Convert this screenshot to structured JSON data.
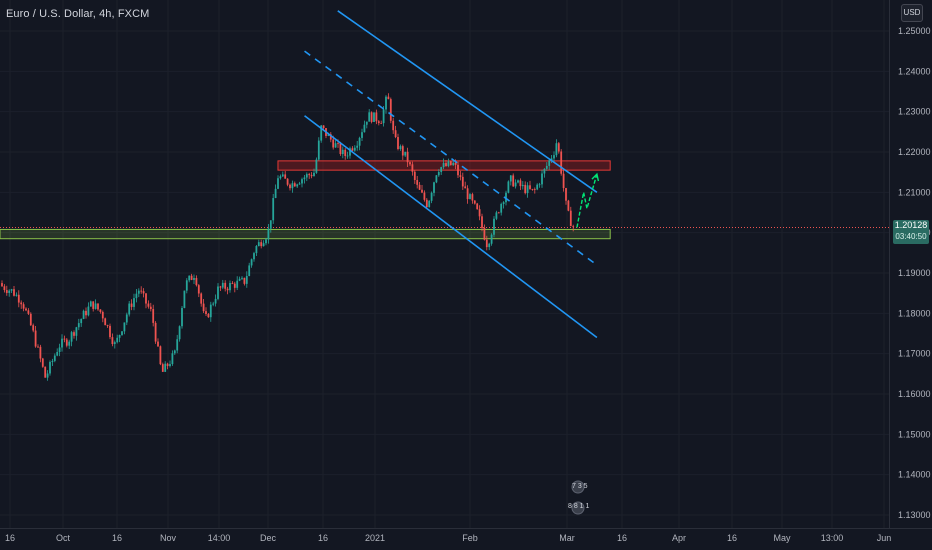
{
  "header": {
    "symbol_title": "Euro / U.S. Dollar, 4h, FXCM",
    "currency_label": "USD"
  },
  "price_tag": {
    "price": "1.20128",
    "countdown": "03:40:50"
  },
  "colors": {
    "background": "#131722",
    "up_candle": "#26a69a",
    "down_candle": "#ef5350",
    "channel_line": "#2196f3",
    "resistance_zone": "#b71c1c",
    "support_zone": "#8bc34a",
    "projection_arrow": "#00e676",
    "axis_text": "#b2b5be",
    "price_line": "#ef5350"
  },
  "badges": [
    "7 3 5",
    "8 8 1 1"
  ],
  "chart_data": {
    "type": "candlestick",
    "title": "Euro / U.S. Dollar, 4h, FXCM",
    "x_tick_labels": [
      "16",
      "Oct",
      "16",
      "Nov",
      "14:00",
      "Dec",
      "16",
      "2021",
      "Feb",
      "Mar",
      "16",
      "Apr",
      "16",
      "May",
      "13:00",
      "Jun"
    ],
    "y_tick_labels": [
      "1.25000",
      "1.24000",
      "1.23000",
      "1.22000",
      "1.21000",
      "1.20000",
      "1.19000",
      "1.18000",
      "1.17000",
      "1.16000",
      "1.15000",
      "1.14000",
      "1.13000"
    ],
    "ylim": [
      1.127,
      1.2555
    ],
    "last_price": 1.20128,
    "price_path": [
      [
        "2020-09-10",
        1.1875
      ],
      [
        "2020-09-15",
        1.1855
      ],
      [
        "2020-09-18",
        1.183
      ],
      [
        "2020-09-21",
        1.176
      ],
      [
        "2020-09-25",
        1.164
      ],
      [
        "2020-09-29",
        1.172
      ],
      [
        "2020-10-02",
        1.1735
      ],
      [
        "2020-10-06",
        1.179
      ],
      [
        "2020-10-09",
        1.1825
      ],
      [
        "2020-10-12",
        1.18
      ],
      [
        "2020-10-16",
        1.172
      ],
      [
        "2020-10-20",
        1.181
      ],
      [
        "2020-10-23",
        1.186
      ],
      [
        "2020-10-27",
        1.18
      ],
      [
        "2020-10-30",
        1.165
      ],
      [
        "2020-11-03",
        1.17
      ],
      [
        "2020-11-06",
        1.187
      ],
      [
        "2020-11-09",
        1.19
      ],
      [
        "2020-11-12",
        1.178
      ],
      [
        "2020-11-16",
        1.186
      ],
      [
        "2020-11-20",
        1.187
      ],
      [
        "2020-11-24",
        1.188
      ],
      [
        "2020-11-27",
        1.196
      ],
      [
        "2020-12-01",
        1.2
      ],
      [
        "2020-12-04",
        1.214
      ],
      [
        "2020-12-08",
        1.212
      ],
      [
        "2020-12-10",
        1.213
      ],
      [
        "2020-12-15",
        1.215
      ],
      [
        "2020-12-17",
        1.226
      ],
      [
        "2020-12-21",
        1.222
      ],
      [
        "2020-12-24",
        1.219
      ],
      [
        "2020-12-28",
        1.223
      ],
      [
        "2020-12-31",
        1.229
      ],
      [
        "2021-01-04",
        1.228
      ],
      [
        "2021-01-06",
        1.234
      ],
      [
        "2021-01-08",
        1.223
      ],
      [
        "2021-01-12",
        1.218
      ],
      [
        "2021-01-15",
        1.211
      ],
      [
        "2021-01-18",
        1.207
      ],
      [
        "2021-01-21",
        1.216
      ],
      [
        "2021-01-26",
        1.217
      ],
      [
        "2021-01-29",
        1.211
      ],
      [
        "2021-02-02",
        1.205
      ],
      [
        "2021-02-05",
        1.197
      ],
      [
        "2021-02-08",
        1.205
      ],
      [
        "2021-02-12",
        1.213
      ],
      [
        "2021-02-16",
        1.211
      ],
      [
        "2021-02-19",
        1.21
      ],
      [
        "2021-02-22",
        1.215
      ],
      [
        "2021-02-25",
        1.22
      ],
      [
        "2021-02-26",
        1.223
      ],
      [
        "2021-03-01",
        1.205
      ],
      [
        "2021-03-03",
        1.2013
      ]
    ],
    "annotations": {
      "resistance_zone": {
        "from": "2020-12-04",
        "to": "2021-03-14",
        "low": 1.2155,
        "high": 1.2178
      },
      "support_zone": {
        "from": "2020-09-09",
        "to": "2021-03-14",
        "low": 1.1985,
        "high": 1.2008
      },
      "channel_upper": [
        [
          "2020-12-22",
          1.255
        ],
        [
          "2021-03-10",
          1.21
        ]
      ],
      "channel_mid_dashed": [
        [
          "2020-12-12",
          1.245
        ],
        [
          "2021-03-10",
          1.192
        ]
      ],
      "channel_lower": [
        [
          "2020-12-12",
          1.229
        ],
        [
          "2021-03-10",
          1.174
        ]
      ],
      "projection_arrow": [
        [
          "2021-03-04",
          1.2013
        ],
        [
          "2021-03-06",
          1.21
        ],
        [
          "2021-03-07",
          1.206
        ],
        [
          "2021-03-10",
          1.2145
        ]
      ]
    }
  }
}
